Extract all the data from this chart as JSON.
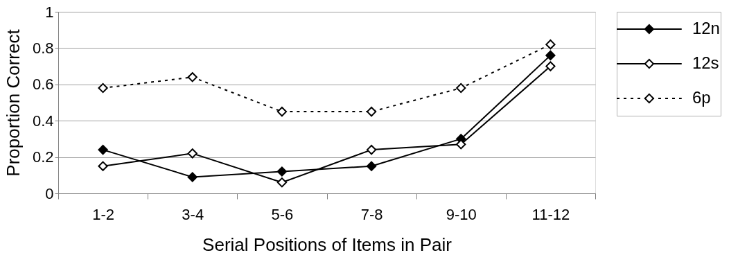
{
  "chart_data": {
    "type": "line",
    "xlabel": "Serial Positions of Items in Pair",
    "ylabel": "Proportion Correct",
    "categories": [
      "1-2",
      "3-4",
      "5-6",
      "7-8",
      "9-10",
      "11-12"
    ],
    "series": [
      {
        "name": "12n",
        "color": "#000000",
        "colors": [
          "#000000",
          "#000000",
          "#000000",
          "#000000",
          "#000000",
          "#000000"
        ],
        "line_style": "solid",
        "values": [
          0.24,
          0.09,
          0.12,
          0.15,
          0.3,
          0.76
        ]
      },
      {
        "name": "12s",
        "color": "#000000",
        "colors": [
          "#ffffff",
          "#ffffff",
          "#ffffff",
          "#ffffff",
          "#ffffff",
          "#ffffff"
        ],
        "line_style": "solid",
        "values": [
          0.15,
          0.22,
          0.06,
          0.24,
          0.27,
          0.7
        ]
      },
      {
        "name": "6p",
        "color": "#000000",
        "colors": [
          "#ffffff",
          "#ffffff",
          "#ffffff",
          "#ffffff",
          "#ffffff",
          "#ffffff"
        ],
        "line_style": "dotted",
        "values": [
          0.58,
          0.64,
          0.45,
          0.45,
          0.58,
          0.82
        ]
      }
    ],
    "ylim": [
      0,
      1
    ],
    "yticks": [
      0,
      0.2,
      0.4,
      0.6,
      0.8,
      1
    ],
    "grid": "y",
    "legend": "right",
    "marker": "diamond"
  }
}
